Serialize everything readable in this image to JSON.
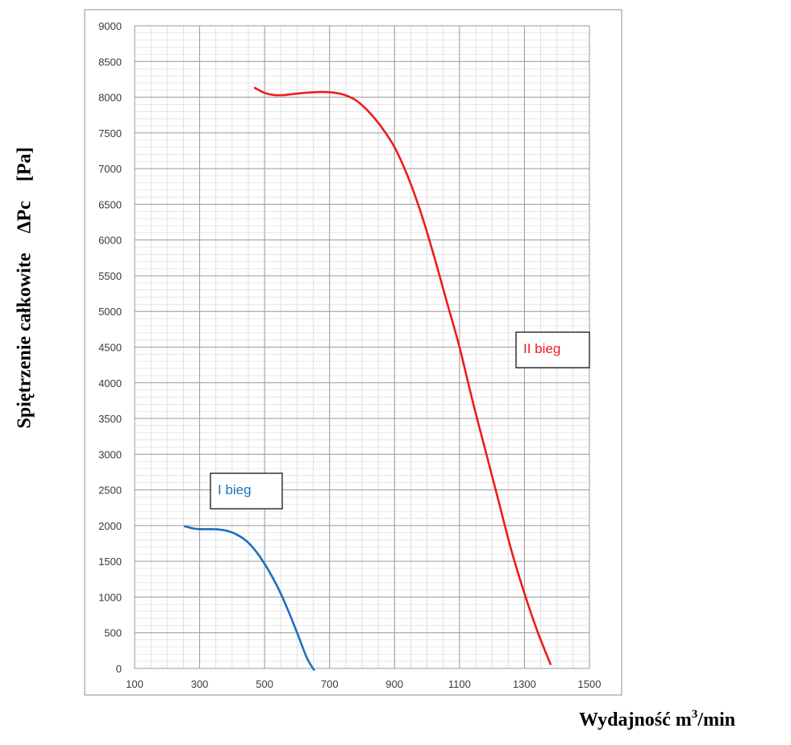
{
  "chart_data": {
    "type": "line",
    "xlabel": "Wydajność m",
    "xlabel_sup": "3",
    "xlabel_suffix": "/min",
    "ylabel": "Spiętrzenie całkowite    ΔPc    [Pa]",
    "xlim": [
      100,
      1500
    ],
    "ylim": [
      0,
      9000
    ],
    "x_ticks": [
      100,
      300,
      500,
      700,
      900,
      1100,
      1300,
      1500
    ],
    "y_ticks": [
      0,
      500,
      1000,
      1500,
      2000,
      2500,
      3000,
      3500,
      4000,
      4500,
      5000,
      5500,
      6000,
      6500,
      7000,
      7500,
      8000,
      8500,
      9000
    ],
    "grid": true,
    "series": [
      {
        "name": "I bieg",
        "color": "#1f6fbf",
        "x": [
          255,
          280,
          300,
          330,
          360,
          390,
          420,
          450,
          480,
          510,
          540,
          570,
          600,
          630,
          652
        ],
        "y": [
          1990,
          1960,
          1950,
          1950,
          1945,
          1920,
          1860,
          1760,
          1600,
          1390,
          1140,
          840,
          500,
          150,
          -20
        ]
      },
      {
        "name": "II bieg",
        "color": "#ee1c1c",
        "x": [
          470,
          500,
          530,
          560,
          600,
          650,
          700,
          740,
          780,
          820,
          860,
          900,
          940,
          980,
          1020,
          1060,
          1100,
          1140,
          1180,
          1220,
          1260,
          1300,
          1340,
          1380
        ],
        "y": [
          8130,
          8060,
          8030,
          8030,
          8050,
          8070,
          8070,
          8040,
          7960,
          7800,
          7580,
          7300,
          6900,
          6400,
          5800,
          5150,
          4500,
          3750,
          3050,
          2350,
          1650,
          1050,
          520,
          60
        ]
      }
    ],
    "annotations": [
      {
        "text": "I bieg",
        "color": "#1f6fbf"
      },
      {
        "text": "II bieg",
        "color": "#ee1c1c"
      }
    ]
  }
}
